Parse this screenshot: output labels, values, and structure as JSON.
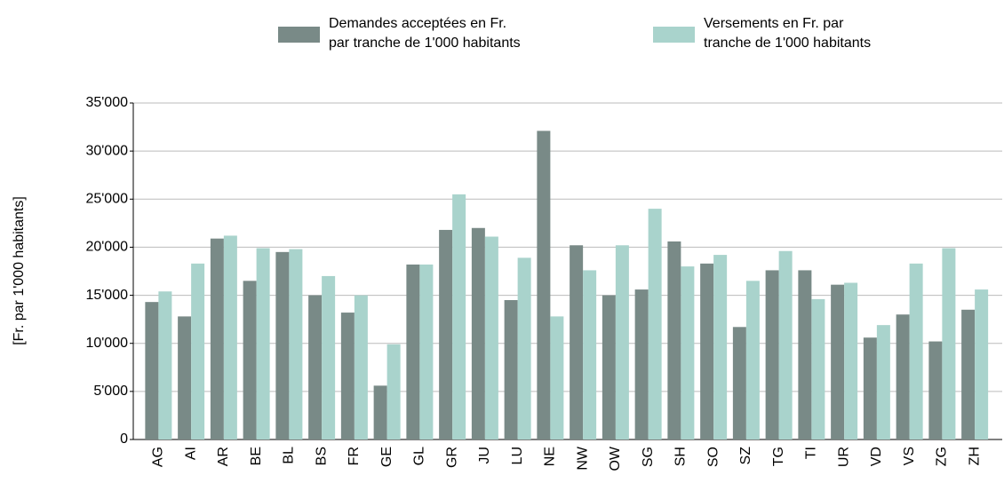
{
  "chart_data": {
    "type": "bar",
    "y_label": "[Fr. par 1'000 habitants]",
    "categories": [
      "AG",
      "AI",
      "AR",
      "BE",
      "BL",
      "BS",
      "FR",
      "GE",
      "GL",
      "GR",
      "JU",
      "LU",
      "NE",
      "NW",
      "OW",
      "SG",
      "SH",
      "SO",
      "SZ",
      "TG",
      "TI",
      "UR",
      "VD",
      "VS",
      "ZG",
      "ZH"
    ],
    "series": [
      {
        "name": "Demandes acceptées en Fr. par tranche de 1'000 habitants",
        "color": "#798a87",
        "values": [
          14300,
          12800,
          20900,
          16500,
          19500,
          15000,
          13200,
          5600,
          18200,
          21800,
          22000,
          14500,
          32100,
          20200,
          15000,
          15600,
          20600,
          18300,
          11700,
          17600,
          17600,
          16100,
          10600,
          13000,
          10200,
          13500
        ]
      },
      {
        "name": "Versements en Fr. par tranche de 1'000 habitants",
        "color": "#a9d3cc",
        "values": [
          15400,
          18300,
          21200,
          19900,
          19800,
          17000,
          15000,
          9900,
          18200,
          25500,
          21100,
          18900,
          12800,
          17600,
          20200,
          24000,
          18000,
          19200,
          16500,
          19600,
          14600,
          16300,
          11900,
          18300,
          19900,
          15600
        ]
      }
    ],
    "ylim": [
      0,
      35000
    ],
    "yticks": [
      0,
      {
        "value": 5000,
        "label": "5'000"
      },
      {
        "value": 10000,
        "label": "10'000"
      },
      {
        "value": 15000,
        "label": "15'000"
      },
      {
        "value": 20000,
        "label": "20'000"
      },
      {
        "value": 25000,
        "label": "25'000"
      },
      {
        "value": 30000,
        "label": "30'000"
      },
      {
        "value": 35000,
        "label": "35'000"
      }
    ],
    "grid": true,
    "legend": "top"
  }
}
